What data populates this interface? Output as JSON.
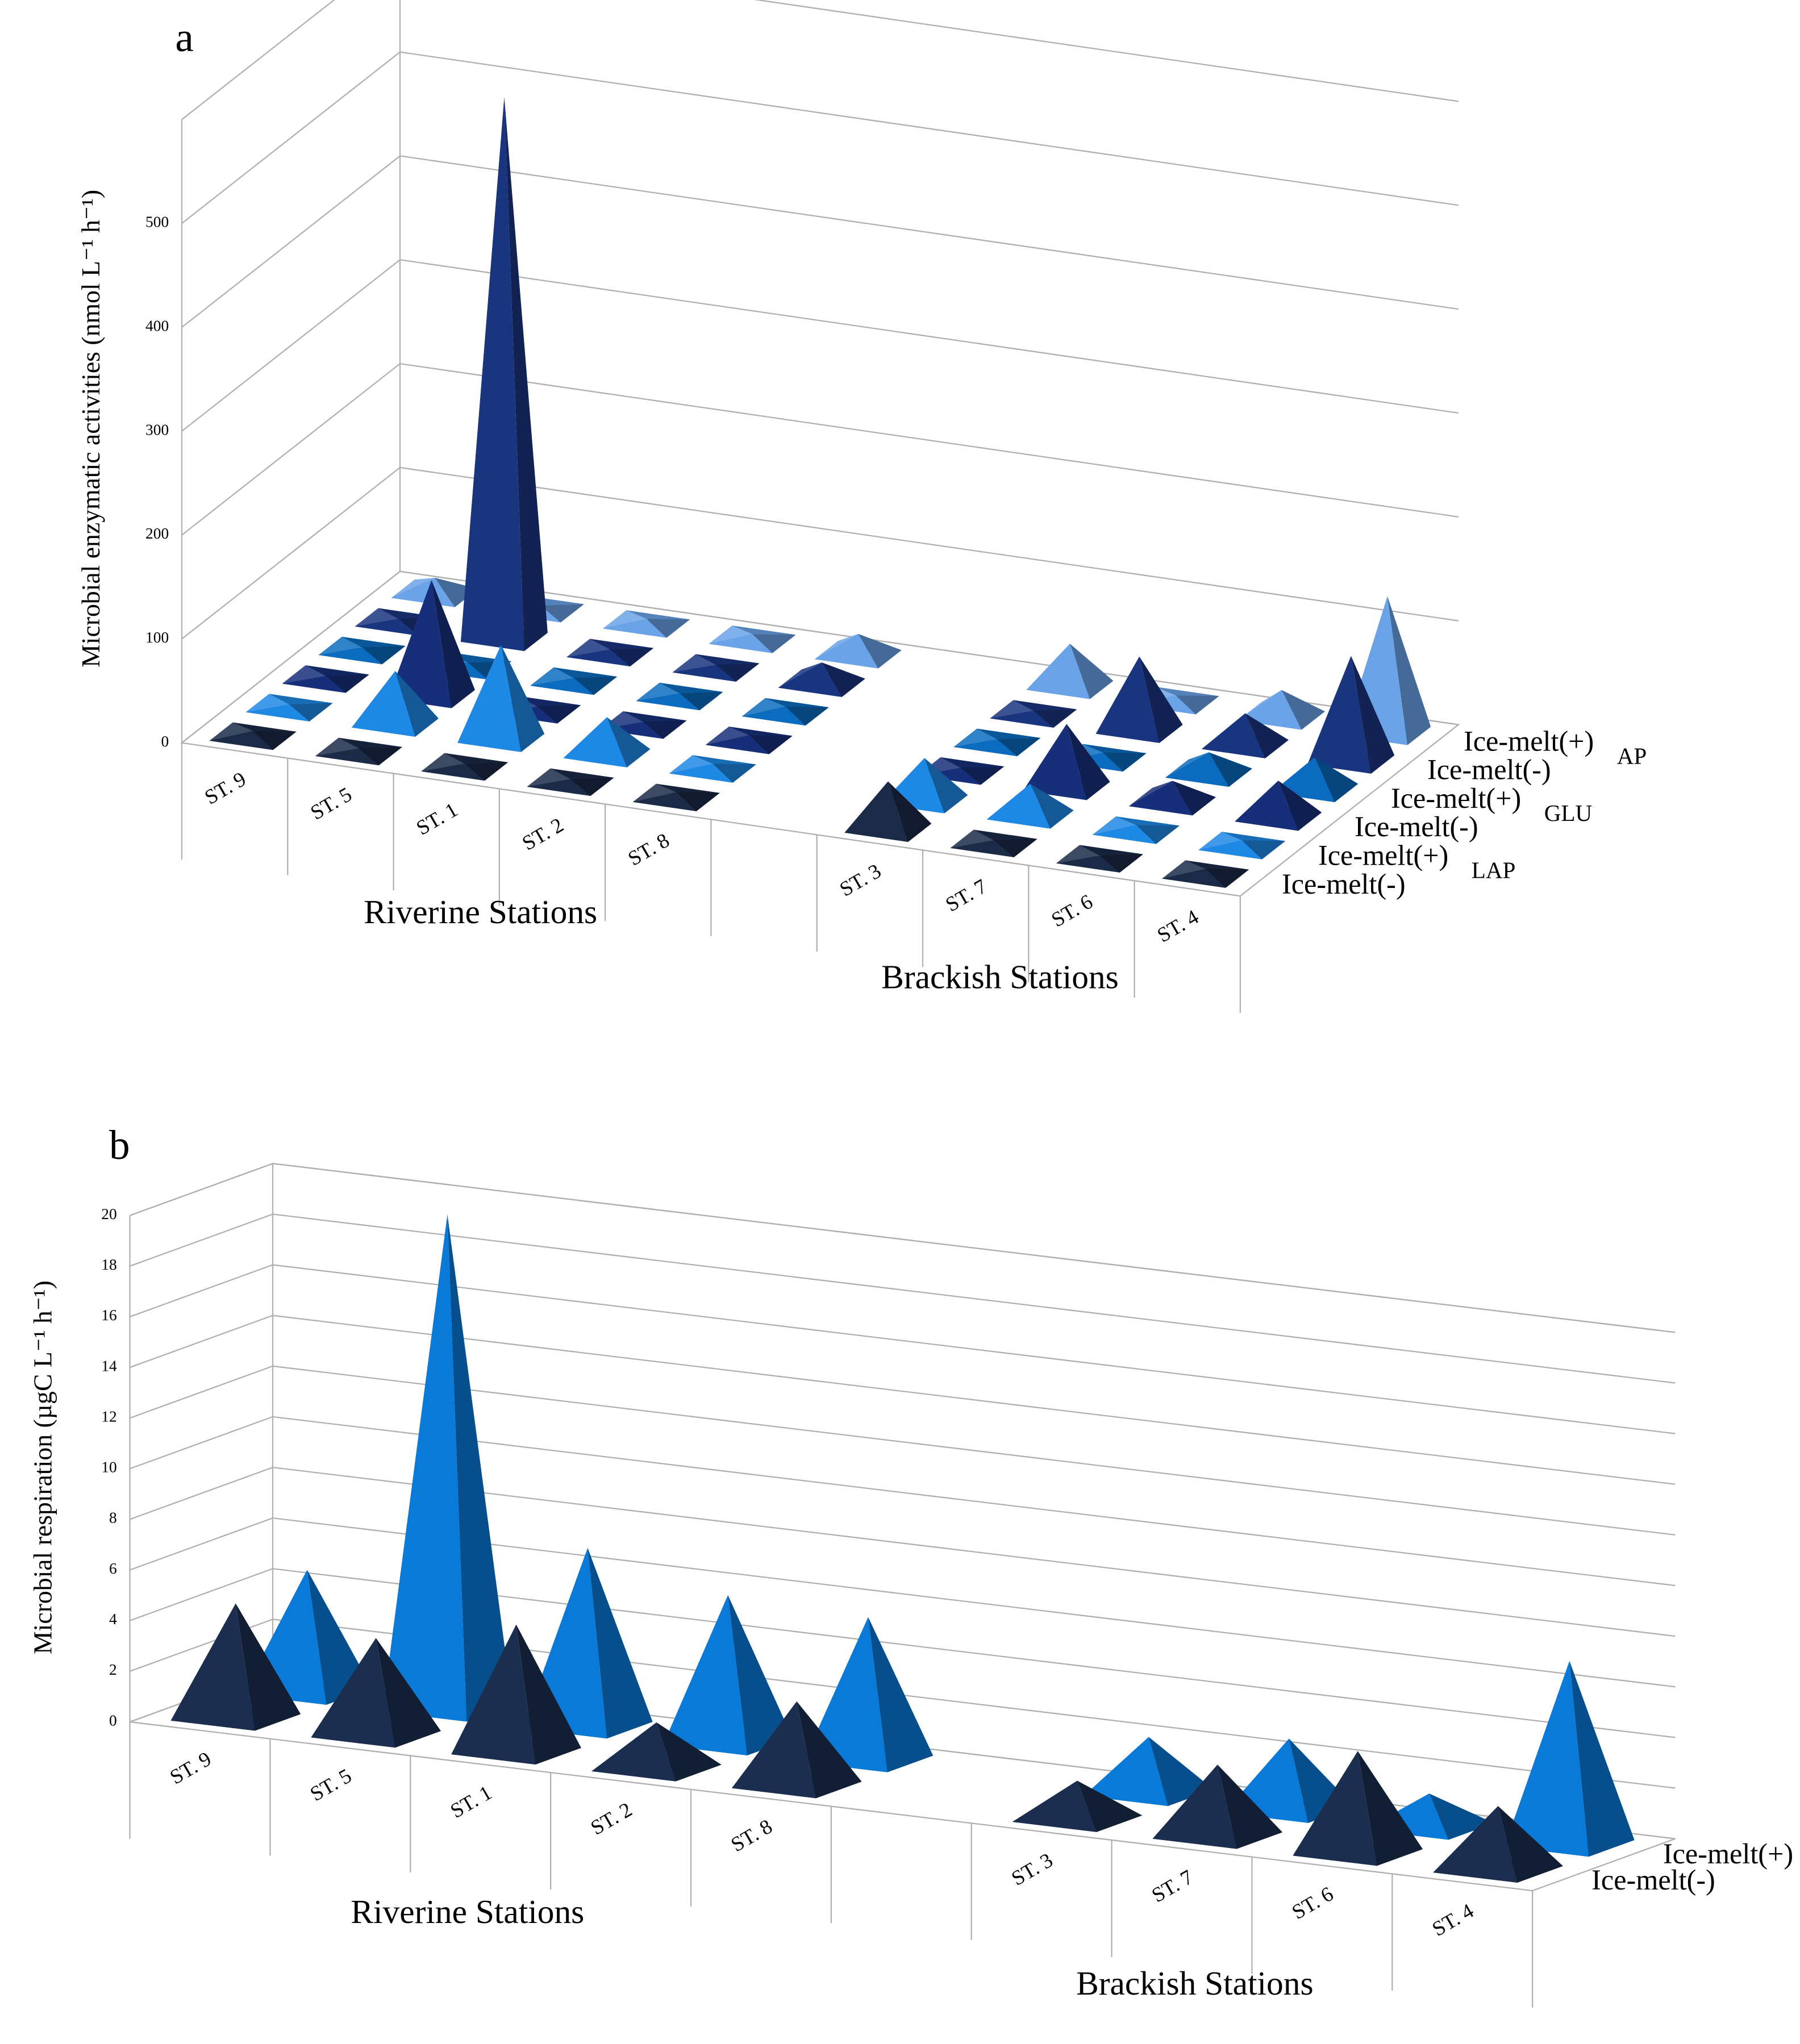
{
  "chart_data": [
    {
      "type": "pyramid3d",
      "panel_label": "a",
      "ylabel": "Microbial enzymatic activities (nmol L⁻¹ h⁻¹)",
      "categories": [
        "ST. 9",
        "ST. 5",
        "ST. 1",
        "ST. 2",
        "ST. 8",
        null,
        "ST. 3",
        "ST. 7",
        "ST. 6",
        "ST. 4"
      ],
      "group_labels": [
        "Riverine Stations",
        "Brackish Stations"
      ],
      "enzyme_labels": [
        "LAP",
        "GLU",
        "AP"
      ],
      "series": [
        {
          "name": "Ice-melt(-)",
          "color": "#1b2a47",
          "values": [
            5,
            3,
            3,
            3,
            5,
            null,
            45,
            3,
            3,
            5
          ]
        },
        {
          "name": "Ice-melt(+)",
          "color": "#1e88e5",
          "values": [
            3,
            50,
            90,
            35,
            5,
            null,
            40,
            30,
            5,
            5
          ]
        },
        {
          "name": "Ice-melt(-)",
          "color": "#172f7a",
          "values": [
            3,
            110,
            3,
            3,
            5,
            null,
            3,
            60,
            20,
            35
          ]
        },
        {
          "name": "Ice-melt(+)",
          "color": "#0b6cbf",
          "values": [
            3,
            3,
            3,
            3,
            5,
            null,
            3,
            5,
            20,
            30
          ]
        },
        {
          "name": "Ice-melt(-)",
          "color": "#1a3580",
          "values": [
            3,
            520,
            3,
            3,
            20,
            null,
            3,
            70,
            30,
            100
          ]
        },
        {
          "name": "Ice-melt(+)",
          "color": "#6aa3e8",
          "values": [
            15,
            3,
            5,
            5,
            20,
            null,
            40,
            5,
            25,
            130
          ]
        }
      ],
      "ylim": [
        0,
        600
      ],
      "yticks": [
        0,
        100,
        200,
        300,
        400,
        500
      ],
      "grid": true
    },
    {
      "type": "pyramid3d",
      "panel_label": "b",
      "ylabel": "Microbial respiration (µgC L⁻¹ h⁻¹)",
      "categories": [
        "ST. 9",
        "ST. 5",
        "ST. 1",
        "ST. 2",
        "ST. 8",
        null,
        "ST. 3",
        "ST. 7",
        "ST. 6",
        "ST. 4"
      ],
      "group_labels": [
        "Riverine Stations",
        "Brackish Stations"
      ],
      "series": [
        {
          "name": "Ice-melt(-)",
          "color": "#1b2e4f",
          "values": [
            4.5,
            3.8,
            5.0,
            1.8,
            3.3,
            null,
            1.5,
            2.8,
            4.0,
            2.5
          ]
        },
        {
          "name": "Ice-melt(+)",
          "color": "#0a7ad8",
          "values": [
            4.8,
            19.5,
            7.0,
            5.8,
            5.6,
            null,
            2.2,
            2.8,
            1.3,
            7.2
          ]
        }
      ],
      "ylim": [
        0,
        20
      ],
      "yticks": [
        0,
        2,
        4,
        6,
        8,
        10,
        12,
        14,
        16,
        18,
        20
      ],
      "grid": true
    }
  ]
}
